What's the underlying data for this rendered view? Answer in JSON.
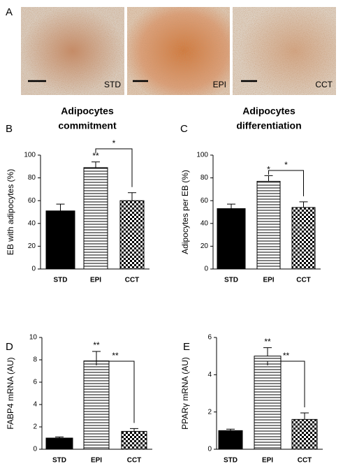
{
  "images": {
    "panel": "A",
    "labels": [
      "STD",
      "EPI",
      "CCT"
    ]
  },
  "chart_data": [
    {
      "type": "bar",
      "panel": "B",
      "title": [
        "Adipocytes",
        "commitment"
      ],
      "ylabel": "EB with adipocytes (%)",
      "categories": [
        "STD",
        "EPI",
        "CCT"
      ],
      "values": [
        51,
        89,
        60
      ],
      "errors": [
        6,
        5,
        7
      ],
      "patterns": [
        "solid",
        "hstripe",
        "check"
      ],
      "color": "#000000",
      "ylim": [
        0,
        100
      ],
      "yticks": [
        0,
        20,
        40,
        60,
        80,
        100
      ],
      "significance": [
        {
          "label": "**",
          "over": "EPI"
        },
        {
          "label": "*",
          "from": "EPI",
          "to": "CCT"
        }
      ]
    },
    {
      "type": "bar",
      "panel": "C",
      "title": [
        "Adipocytes",
        "differentiation"
      ],
      "ylabel": "Adipocytes per EB (%)",
      "categories": [
        "STD",
        "EPI",
        "CCT"
      ],
      "values": [
        53,
        77,
        54
      ],
      "errors": [
        4,
        5,
        5
      ],
      "patterns": [
        "solid",
        "hstripe",
        "check"
      ],
      "color": "#000000",
      "ylim": [
        0,
        100
      ],
      "yticks": [
        0,
        20,
        40,
        60,
        80,
        100
      ],
      "significance": [
        {
          "label": "*",
          "over": "EPI"
        },
        {
          "label": "*",
          "from": "EPI",
          "to": "CCT"
        }
      ]
    },
    {
      "type": "bar",
      "panel": "D",
      "ylabel": "FABP4 mRNA (AU)",
      "categories": [
        "STD",
        "EPI",
        "CCT"
      ],
      "values": [
        1.0,
        7.9,
        1.6
      ],
      "errors": [
        0.1,
        0.85,
        0.25
      ],
      "patterns": [
        "solid",
        "hstripe",
        "check"
      ],
      "color": "#000000",
      "ylim": [
        0,
        10
      ],
      "yticks": [
        0,
        2,
        4,
        6,
        8,
        10
      ],
      "significance": [
        {
          "label": "**",
          "over": "EPI"
        },
        {
          "label": "**",
          "from": "EPI",
          "to": "CCT"
        }
      ]
    },
    {
      "type": "bar",
      "panel": "E",
      "ylabel": "PPARγ mRNA (AU)",
      "categories": [
        "STD",
        "EPI",
        "CCT"
      ],
      "values": [
        1.0,
        5.0,
        1.6
      ],
      "errors": [
        0.08,
        0.45,
        0.35
      ],
      "patterns": [
        "solid",
        "hstripe",
        "check"
      ],
      "color": "#000000",
      "ylim": [
        0,
        6
      ],
      "yticks": [
        0,
        2,
        4,
        6
      ],
      "significance": [
        {
          "label": "**",
          "over": "EPI"
        },
        {
          "label": "**",
          "from": "EPI",
          "to": "CCT"
        }
      ]
    }
  ]
}
